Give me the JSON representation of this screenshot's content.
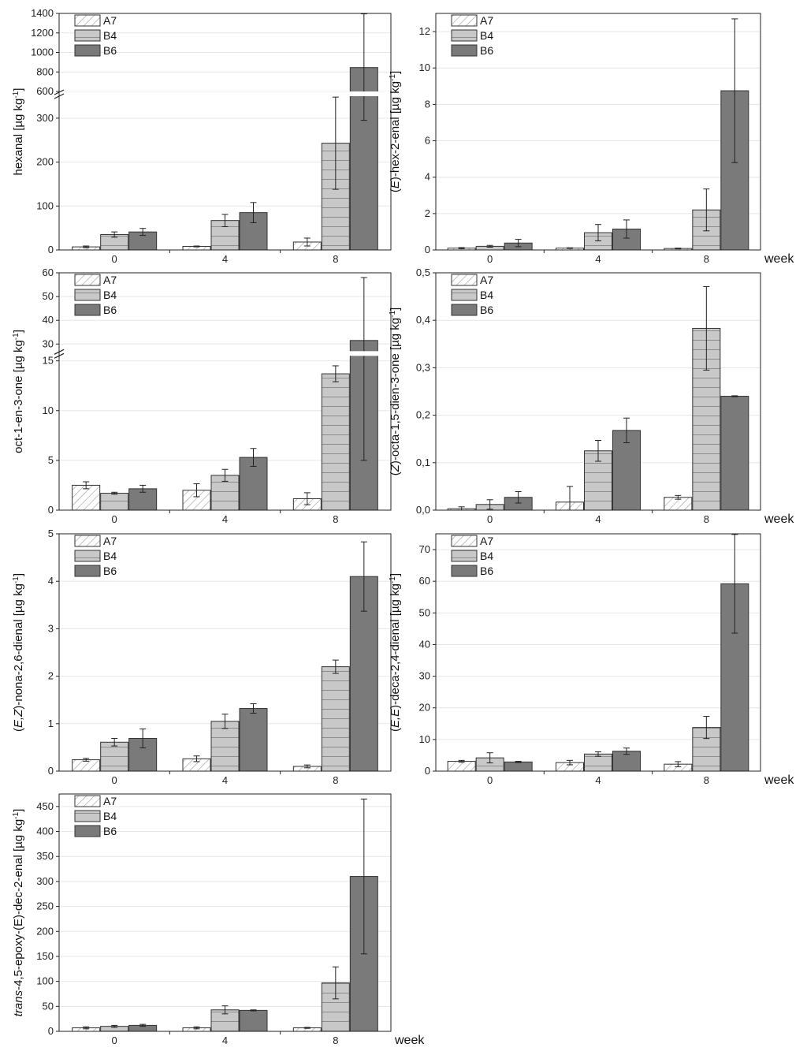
{
  "figure": {
    "week_label": "week"
  },
  "colors": {
    "A7": "#ffffff",
    "B4": "#c8c8c8",
    "B6": "#7a7a7a",
    "axis": "#222222",
    "grid": "#e6e6e6"
  },
  "chart_data": [
    {
      "id": "hexanal",
      "type": "bar",
      "ylabel": {
        "pre": "",
        "italic": "",
        "mid": "hexanal [µg kg",
        "sup": "-1",
        "post": "]"
      },
      "categories": [
        "0",
        "4",
        "8"
      ],
      "xlabel": "week",
      "show_week": false,
      "legend": [
        "A7",
        "B4",
        "B6"
      ],
      "series": [
        {
          "name": "A7",
          "values": [
            7,
            8,
            18
          ],
          "errors": [
            2,
            1,
            9
          ]
        },
        {
          "name": "B4",
          "values": [
            35,
            67,
            243
          ],
          "errors": [
            6,
            14,
            105
          ]
        },
        {
          "name": "B6",
          "values": [
            41,
            85,
            845
          ],
          "errors": [
            8,
            23,
            550
          ]
        }
      ],
      "axis_break": {
        "lower": [
          0,
          350
        ],
        "upper": [
          600,
          1400
        ],
        "lower_ticks": [
          "0",
          "100",
          "200",
          "300"
        ],
        "upper_ticks": [
          "600",
          "800",
          "1000",
          "1200",
          "1400"
        ]
      }
    },
    {
      "id": "hex2enal",
      "type": "bar",
      "ylabel": {
        "pre": "(",
        "italic": "E",
        "mid": ")-hex-2-enal [µg kg",
        "sup": "-1",
        "post": "]"
      },
      "categories": [
        "0",
        "4",
        "8"
      ],
      "xlabel": "week",
      "show_week": true,
      "legend": [
        "A7",
        "B4",
        "B6"
      ],
      "series": [
        {
          "name": "A7",
          "values": [
            0.1,
            0.1,
            0.08
          ],
          "errors": [
            0.03,
            0.02,
            0.02
          ]
        },
        {
          "name": "B4",
          "values": [
            0.2,
            0.95,
            2.2
          ],
          "errors": [
            0.05,
            0.45,
            1.15
          ]
        },
        {
          "name": "B6",
          "values": [
            0.38,
            1.15,
            8.75
          ],
          "errors": [
            0.2,
            0.5,
            3.95
          ]
        }
      ],
      "ylim": [
        0,
        13
      ],
      "yticks": [
        "0",
        "2",
        "4",
        "6",
        "8",
        "10",
        "12"
      ]
    },
    {
      "id": "octenone",
      "type": "bar",
      "ylabel": {
        "pre": "",
        "italic": "",
        "mid": "oct-1-en-3-one [µg kg",
        "sup": "-1",
        "post": "]"
      },
      "categories": [
        "0",
        "4",
        "8"
      ],
      "xlabel": "week",
      "show_week": false,
      "legend": [
        "A7",
        "B4",
        "B6"
      ],
      "series": [
        {
          "name": "A7",
          "values": [
            2.5,
            2.0,
            1.15
          ],
          "errors": [
            0.35,
            0.65,
            0.6
          ]
        },
        {
          "name": "B4",
          "values": [
            1.7,
            3.5,
            13.7
          ],
          "errors": [
            0.1,
            0.6,
            0.8
          ]
        },
        {
          "name": "B6",
          "values": [
            2.15,
            5.3,
            31.5
          ],
          "errors": [
            0.35,
            0.9,
            26.5
          ]
        }
      ],
      "axis_break": {
        "lower": [
          0,
          15.5
        ],
        "upper": [
          27,
          60
        ],
        "lower_ticks": [
          "0",
          "5",
          "10",
          "15"
        ],
        "upper_ticks": [
          "30",
          "40",
          "50",
          "60"
        ]
      }
    },
    {
      "id": "octadienone",
      "type": "bar",
      "ylabel": {
        "pre": "(",
        "italic": "Z",
        "mid": ")-octa-1,5-dien-3-one [µg kg",
        "sup": "-1",
        "post": "]"
      },
      "categories": [
        "0",
        "4",
        "8"
      ],
      "xlabel": "week",
      "show_week": true,
      "legend": [
        "A7",
        "B4",
        "B6"
      ],
      "series": [
        {
          "name": "A7",
          "values": [
            0.003,
            0.017,
            0.027
          ],
          "errors": [
            0.004,
            0.033,
            0.004
          ]
        },
        {
          "name": "B4",
          "values": [
            0.012,
            0.125,
            0.383
          ],
          "errors": [
            0.01,
            0.022,
            0.088
          ]
        },
        {
          "name": "B6",
          "values": [
            0.027,
            0.168,
            0.24
          ],
          "errors": [
            0.012,
            0.026,
            0.001
          ]
        }
      ],
      "ylim": [
        0,
        0.5
      ],
      "yticks": [
        "0,0",
        "0,1",
        "0,2",
        "0,3",
        "0,4",
        "0,5"
      ]
    },
    {
      "id": "nonadienal",
      "type": "bar",
      "ylabel": {
        "pre": "(",
        "italic": "E,Z",
        "mid": ")-nona-2,6-dienal [µg kg",
        "sup": "-1",
        "post": "]"
      },
      "categories": [
        "0",
        "4",
        "8"
      ],
      "xlabel": "week",
      "show_week": false,
      "legend": [
        "A7",
        "B4",
        "B6"
      ],
      "series": [
        {
          "name": "A7",
          "values": [
            0.24,
            0.26,
            0.1
          ],
          "errors": [
            0.03,
            0.06,
            0.03
          ]
        },
        {
          "name": "B4",
          "values": [
            0.61,
            1.05,
            2.2
          ],
          "errors": [
            0.08,
            0.15,
            0.14
          ]
        },
        {
          "name": "B6",
          "values": [
            0.69,
            1.32,
            4.1
          ],
          "errors": [
            0.2,
            0.1,
            0.73
          ]
        }
      ],
      "ylim": [
        0,
        5
      ],
      "yticks": [
        "0",
        "1",
        "2",
        "3",
        "4",
        "5"
      ]
    },
    {
      "id": "decadienal",
      "type": "bar",
      "ylabel": {
        "pre": "(",
        "italic": "E,E",
        "mid": ")-deca-2,4-dienal [µg kg",
        "sup": "-1",
        "post": "]"
      },
      "categories": [
        "0",
        "4",
        "8"
      ],
      "xlabel": "week",
      "show_week": true,
      "legend": [
        "A7",
        "B4",
        "B6"
      ],
      "series": [
        {
          "name": "A7",
          "values": [
            3.1,
            2.7,
            2.2
          ],
          "errors": [
            0.3,
            0.7,
            0.8
          ]
        },
        {
          "name": "B4",
          "values": [
            4.2,
            5.4,
            13.8
          ],
          "errors": [
            1.6,
            0.7,
            3.5
          ]
        },
        {
          "name": "B6",
          "values": [
            2.9,
            6.3,
            59.2
          ],
          "errors": [
            0.2,
            1.0,
            15.6
          ]
        }
      ],
      "ylim": [
        0,
        75
      ],
      "yticks": [
        "0",
        "10",
        "20",
        "30",
        "40",
        "50",
        "60",
        "70"
      ]
    },
    {
      "id": "epoxydecenal",
      "type": "bar",
      "ylabel": {
        "pre": "",
        "italic": "trans",
        "mid": "-4,5-epoxy-(E)-dec-2-enal [µg kg",
        "sup": "-1",
        "post": "]"
      },
      "categories": [
        "0",
        "4",
        "8"
      ],
      "xlabel": "week",
      "show_week": true,
      "legend": [
        "A7",
        "B4",
        "B6"
      ],
      "series": [
        {
          "name": "A7",
          "values": [
            7,
            7,
            7
          ],
          "errors": [
            2,
            2,
            1
          ]
        },
        {
          "name": "B4",
          "values": [
            10,
            43,
            97
          ],
          "errors": [
            2,
            8,
            32
          ]
        },
        {
          "name": "B6",
          "values": [
            12,
            42,
            310
          ],
          "errors": [
            2,
            1,
            155
          ]
        }
      ],
      "ylim": [
        0,
        475
      ],
      "yticks": [
        "0",
        "50",
        "100",
        "150",
        "200",
        "250",
        "300",
        "350",
        "400",
        "450"
      ]
    }
  ]
}
